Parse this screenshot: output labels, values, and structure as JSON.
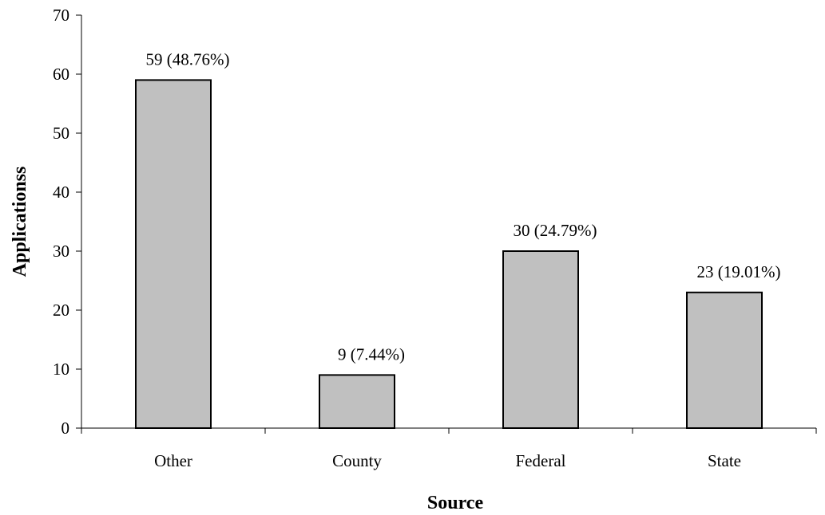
{
  "chart_data": {
    "type": "bar",
    "categories": [
      "Other",
      "County",
      "Federal",
      "State"
    ],
    "values": [
      59,
      9,
      30,
      23
    ],
    "data_labels": [
      "59  (48.76%)",
      "9 (7.44%)",
      "30  (24.79%)",
      "23  (19.01%)"
    ],
    "title": "",
    "xlabel": "Source",
    "ylabel": "Applicationss",
    "ylim": [
      0,
      70
    ],
    "yticks": [
      0,
      10,
      20,
      30,
      40,
      50,
      60,
      70
    ],
    "grid": false,
    "legend": "none",
    "bar_color": "#c0c0c0",
    "bar_edge_color": "#000000"
  }
}
